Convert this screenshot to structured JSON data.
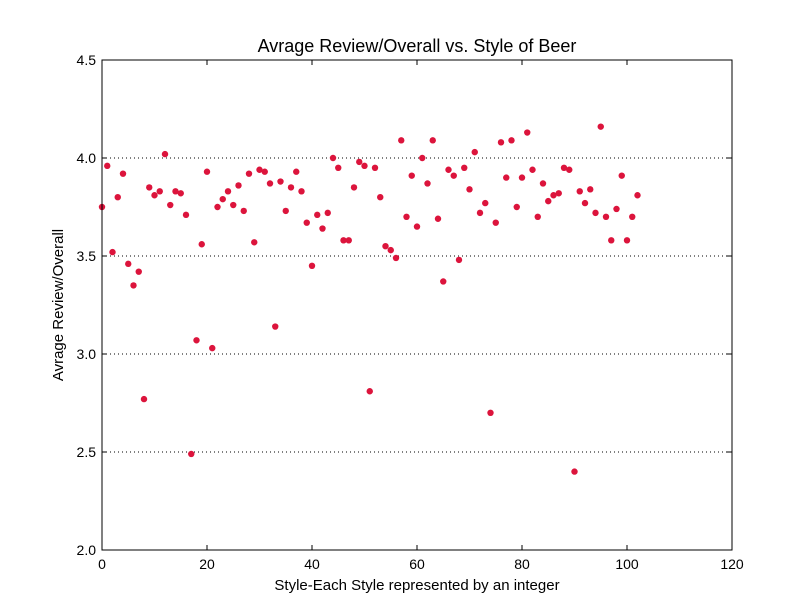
{
  "chart_data": {
    "type": "scatter",
    "title": "Avrage Review/Overall vs. Style of Beer",
    "xlabel": "Style-Each Style represented by an integer",
    "ylabel": "Avrage Review/Overall",
    "xlim": [
      0,
      120
    ],
    "ylim": [
      2.0,
      4.5
    ],
    "xticks": [
      0,
      20,
      40,
      60,
      80,
      100,
      120
    ],
    "xtick_labels": [
      "0",
      "20",
      "40",
      "60",
      "80",
      "100",
      "120"
    ],
    "yticks": [
      2.0,
      2.5,
      3.0,
      3.5,
      4.0,
      4.5
    ],
    "ytick_labels": [
      "2.0",
      "2.5",
      "3.0",
      "3.5",
      "4.0",
      "4.5"
    ],
    "grid": "horizontal dotted at y ticks",
    "marker_color": "#dc143c",
    "x": [
      0,
      1,
      2,
      3,
      4,
      5,
      6,
      7,
      8,
      9,
      10,
      11,
      12,
      13,
      14,
      15,
      16,
      17,
      18,
      19,
      20,
      21,
      22,
      23,
      24,
      25,
      26,
      27,
      28,
      29,
      30,
      31,
      32,
      33,
      34,
      35,
      36,
      37,
      38,
      39,
      40,
      41,
      42,
      43,
      44,
      45,
      46,
      47,
      48,
      49,
      50,
      51,
      52,
      53,
      54,
      55,
      56,
      57,
      58,
      59,
      60,
      61,
      62,
      63,
      64,
      65,
      66,
      67,
      68,
      69,
      70,
      71,
      72,
      73,
      74,
      75,
      76,
      77,
      78,
      79,
      80,
      81,
      82,
      83,
      84,
      85,
      86,
      87,
      88,
      89,
      90,
      91,
      92,
      93,
      94,
      95,
      96,
      97,
      98,
      99,
      100,
      101,
      102
    ],
    "y": [
      3.75,
      3.96,
      3.52,
      3.8,
      3.92,
      3.46,
      3.35,
      3.42,
      2.77,
      3.85,
      3.81,
      3.83,
      4.02,
      3.76,
      3.83,
      3.82,
      3.71,
      2.49,
      3.07,
      3.56,
      3.93,
      3.03,
      3.75,
      3.79,
      3.83,
      3.76,
      3.86,
      3.73,
      3.92,
      3.57,
      3.94,
      3.93,
      3.87,
      3.14,
      3.88,
      3.73,
      3.85,
      3.93,
      3.83,
      3.67,
      3.45,
      3.71,
      3.64,
      3.72,
      4.0,
      3.95,
      3.58,
      3.58,
      3.85,
      3.98,
      3.96,
      2.81,
      3.95,
      3.8,
      3.55,
      3.53,
      3.49,
      4.09,
      3.7,
      3.91,
      3.65,
      4.0,
      3.87,
      4.09,
      3.69,
      3.37,
      3.94,
      3.91,
      3.48,
      3.95,
      3.84,
      4.03,
      3.72,
      3.77,
      2.7,
      3.67,
      4.08,
      3.9,
      4.09,
      3.75,
      3.9,
      4.13,
      3.94,
      3.7,
      3.87,
      3.78,
      3.81,
      3.82,
      3.95,
      3.94,
      2.4,
      3.83,
      3.77,
      3.84,
      3.72,
      4.16,
      3.7,
      3.58,
      3.74,
      3.91,
      3.58,
      3.7,
      3.81
    ]
  }
}
